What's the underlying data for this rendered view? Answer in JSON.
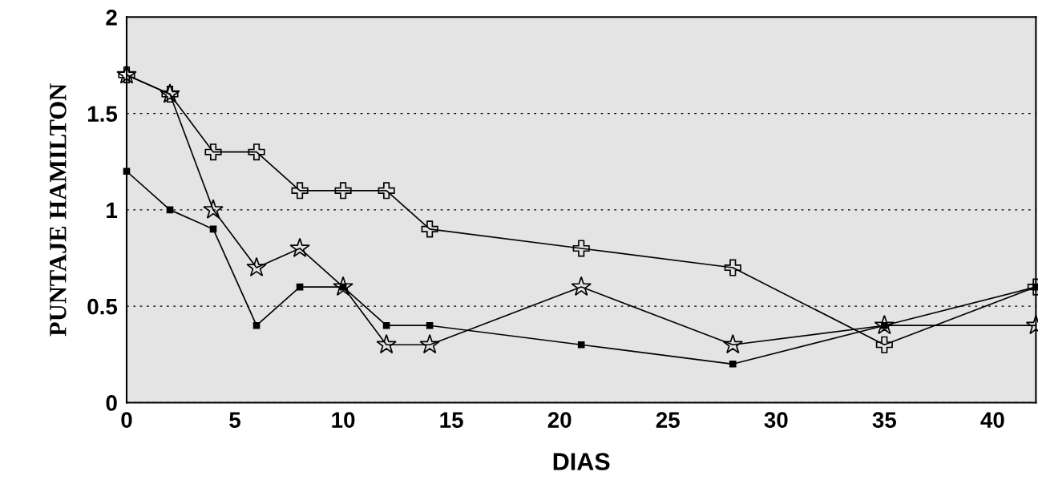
{
  "chart_data": {
    "type": "line",
    "xlabel": "DIAS",
    "ylabel": "PUNTAJE HAMILTON",
    "x": [
      0,
      2,
      4,
      6,
      8,
      10,
      12,
      14,
      21,
      28,
      35,
      42
    ],
    "series": [
      {
        "color": "#000000",
        "marker": "cross",
        "values": [
          1.7,
          1.6,
          1.3,
          1.3,
          1.1,
          1.1,
          1.1,
          0.9,
          0.8,
          0.7,
          0.3,
          0.6
        ]
      },
      {
        "color": "#000000",
        "marker": "star",
        "values": [
          1.7,
          1.6,
          1.0,
          0.7,
          0.8,
          0.6,
          0.3,
          0.3,
          0.6,
          0.3,
          0.4,
          0.4
        ]
      },
      {
        "color": "#000000",
        "marker": "square",
        "values": [
          1.2,
          1.0,
          0.9,
          0.4,
          0.6,
          0.6,
          0.4,
          0.4,
          0.3,
          0.2,
          0.4,
          0.6
        ]
      }
    ],
    "xlim": [
      0,
      42
    ],
    "ylim": [
      0,
      2
    ],
    "xticks": [
      0,
      5,
      10,
      15,
      20,
      25,
      30,
      35,
      40
    ],
    "yticks": [
      0,
      0.5,
      1,
      1.5,
      2
    ],
    "grid": "y",
    "line_style": "solid"
  }
}
